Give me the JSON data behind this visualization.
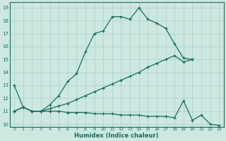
{
  "xlabel": "Humidex (Indice chaleur)",
  "xlim": [
    -0.5,
    23.5
  ],
  "ylim": [
    9.8,
    19.4
  ],
  "yticks": [
    10,
    11,
    12,
    13,
    14,
    15,
    16,
    17,
    18,
    19
  ],
  "xticks": [
    0,
    1,
    2,
    3,
    4,
    5,
    6,
    7,
    8,
    9,
    10,
    11,
    12,
    13,
    14,
    15,
    16,
    17,
    18,
    19,
    20,
    21,
    22,
    23
  ],
  "background_color": "#cce8e0",
  "grid_color": "#aacfc8",
  "line_color": "#1a6b5e",
  "curves": [
    {
      "x": [
        0,
        1,
        2,
        3,
        4,
        5,
        6,
        7,
        8,
        9,
        10,
        11,
        12,
        13,
        14,
        15,
        16,
        17,
        18,
        19,
        20
      ],
      "y": [
        13.0,
        11.3,
        11.0,
        11.0,
        11.5,
        12.2,
        13.3,
        13.9,
        15.6,
        17.0,
        17.2,
        18.3,
        18.3,
        18.1,
        19.0,
        18.1,
        17.8,
        17.4,
        16.2,
        15.1,
        15.0
      ]
    },
    {
      "x": [
        0,
        1,
        2,
        3,
        4,
        5,
        6,
        7,
        8,
        9,
        10,
        11,
        12,
        13,
        14,
        15,
        16,
        17,
        18,
        19,
        20
      ],
      "y": [
        11.0,
        11.3,
        11.0,
        11.0,
        11.2,
        11.4,
        11.6,
        11.9,
        12.2,
        12.5,
        12.8,
        13.1,
        13.4,
        13.7,
        14.0,
        14.4,
        14.7,
        15.0,
        15.3,
        14.8,
        15.0
      ]
    },
    {
      "x": [
        0,
        1,
        2,
        3,
        4,
        5,
        6,
        7,
        8,
        9,
        10,
        11,
        12,
        13,
        14,
        15,
        16,
        17,
        18,
        19,
        20,
        21,
        22,
        23
      ],
      "y": [
        11.0,
        11.3,
        11.0,
        11.0,
        11.0,
        11.0,
        10.9,
        10.9,
        10.9,
        10.8,
        10.8,
        10.8,
        10.7,
        10.7,
        10.7,
        10.6,
        10.6,
        10.6,
        10.5,
        11.8,
        10.3,
        10.7,
        10.0,
        9.9
      ]
    }
  ]
}
